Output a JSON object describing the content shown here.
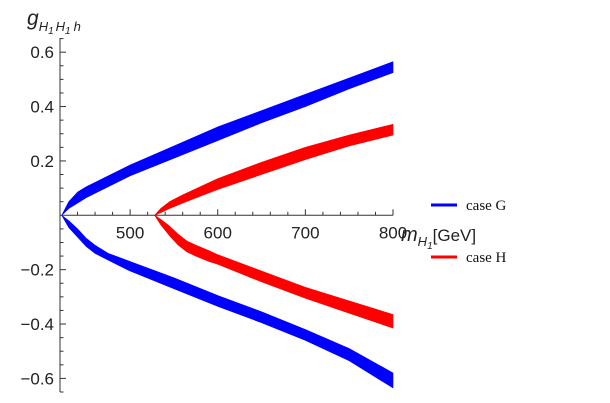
{
  "chart_data": {
    "type": "area",
    "xlabel": {
      "base": "m",
      "sub": "H",
      "subsub": "1",
      "suffix": "[GeV]"
    },
    "ylabel": {
      "base": "g",
      "sub": "H",
      "subsub": "1",
      "sub2": "H",
      "subsub2": "1",
      "sub3": "h"
    },
    "xlim": [
      420,
      800
    ],
    "ylim": [
      -0.65,
      0.7
    ],
    "x_ticks": [
      500,
      600,
      700,
      800
    ],
    "y_ticks": [
      {
        "value": 0.6,
        "label": "0.6"
      },
      {
        "value": 0.4,
        "label": "0.4"
      },
      {
        "value": 0.2,
        "label": "0.2"
      },
      {
        "value": -0.2,
        "label": "−0.2"
      },
      {
        "value": -0.4,
        "label": "−0.4"
      },
      {
        "value": -0.6,
        "label": "−0.6"
      }
    ],
    "grid": false,
    "legend_position": "right",
    "series": [
      {
        "name": "case G",
        "color": "#0000ff",
        "bands": [
          {
            "part": "upper",
            "x": [
              422,
              430,
              440,
              450,
              475,
              500,
              550,
              600,
              650,
              700,
              750,
              800
            ],
            "lower": [
              0.0,
              0.025,
              0.045,
              0.065,
              0.105,
              0.145,
              0.21,
              0.275,
              0.34,
              0.4,
              0.465,
              0.525
            ],
            "upper": [
              0.0,
              0.05,
              0.085,
              0.105,
              0.145,
              0.185,
              0.255,
              0.325,
              0.385,
              0.445,
              0.505,
              0.565
            ]
          },
          {
            "part": "lower",
            "x": [
              422,
              430,
              440,
              450,
              460,
              475,
              500,
              550,
              600,
              650,
              700,
              750,
              800
            ],
            "upper": [
              0.0,
              -0.02,
              -0.05,
              -0.085,
              -0.11,
              -0.14,
              -0.17,
              -0.23,
              -0.295,
              -0.355,
              -0.42,
              -0.49,
              -0.58
            ],
            "lower": [
              0.0,
              -0.045,
              -0.08,
              -0.115,
              -0.14,
              -0.165,
              -0.205,
              -0.27,
              -0.335,
              -0.395,
              -0.46,
              -0.535,
              -0.635
            ]
          }
        ]
      },
      {
        "name": "case H",
        "color": "#ff0000",
        "bands": [
          {
            "part": "upper",
            "x": [
              528,
              535,
              545,
              560,
              580,
              600,
              650,
              700,
              750,
              800
            ],
            "lower": [
              0.0,
              0.01,
              0.025,
              0.045,
              0.07,
              0.095,
              0.15,
              0.205,
              0.255,
              0.295
            ],
            "upper": [
              0.0,
              0.025,
              0.05,
              0.075,
              0.105,
              0.135,
              0.195,
              0.25,
              0.295,
              0.335
            ]
          },
          {
            "part": "lower",
            "x": [
              528,
              535,
              545,
              555,
              565,
              575,
              590,
              600,
              650,
              700,
              750,
              800
            ],
            "upper": [
              0.0,
              -0.015,
              -0.04,
              -0.07,
              -0.095,
              -0.11,
              -0.13,
              -0.145,
              -0.205,
              -0.265,
              -0.315,
              -0.365
            ],
            "lower": [
              0.0,
              -0.035,
              -0.075,
              -0.11,
              -0.135,
              -0.15,
              -0.17,
              -0.18,
              -0.245,
              -0.305,
              -0.36,
              -0.415
            ]
          }
        ]
      }
    ]
  }
}
